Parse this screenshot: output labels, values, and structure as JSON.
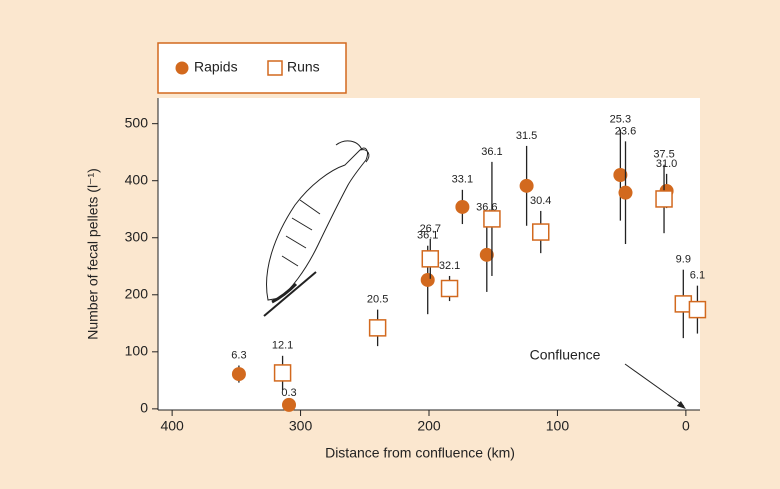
{
  "chart_data": {
    "type": "scatter",
    "x_label": "Distance from confluence (km)",
    "y_label": "Number of fecal pellets (l⁻¹)",
    "annotation": "Confluence",
    "xlim": [
      411,
      -11
    ],
    "xticks": [
      400,
      300,
      200,
      100,
      0
    ],
    "ylim": [
      -2,
      545
    ],
    "yticks": [
      0,
      100,
      200,
      300,
      400,
      500
    ],
    "series": [
      {
        "name": "Rapids",
        "marker": "circle",
        "color": "#d2691e",
        "x": [
          348,
          309,
          201,
          174,
          155,
          124,
          51,
          47,
          15
        ],
        "values": [
          61,
          7,
          226,
          354,
          270,
          391,
          410,
          379,
          382
        ],
        "errors": [
          15,
          3,
          60,
          30,
          65,
          70,
          80,
          90,
          30
        ],
        "labels": [
          "6.3",
          "0.3",
          "36.1",
          "33.1",
          "36.6",
          "31.5",
          "25.3",
          "23.6",
          "31.0"
        ]
      },
      {
        "name": "Runs",
        "marker": "square",
        "color": "#d2691e",
        "x": [
          314,
          240,
          199,
          184,
          151,
          113,
          17,
          2,
          -9
        ],
        "values": [
          63,
          142,
          263,
          211,
          333,
          310,
          368,
          184,
          174
        ],
        "errors": [
          30,
          32,
          35,
          22,
          100,
          37,
          60,
          60,
          42
        ],
        "labels": [
          "12.1",
          "20.5",
          "26.7",
          "32.1",
          "36.1",
          "30.4",
          "37.5",
          "9.9",
          "6.1"
        ]
      }
    ]
  }
}
